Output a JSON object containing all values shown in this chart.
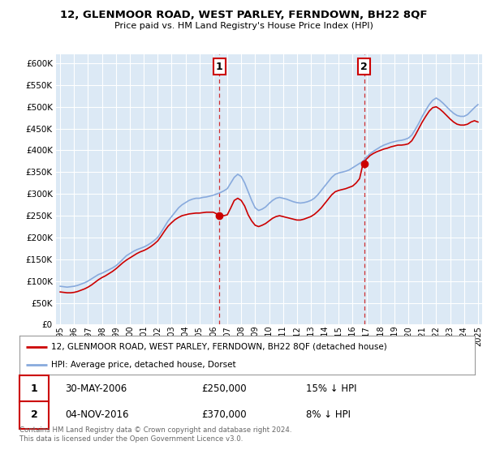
{
  "title": "12, GLENMOOR ROAD, WEST PARLEY, FERNDOWN, BH22 8QF",
  "subtitle": "Price paid vs. HM Land Registry's House Price Index (HPI)",
  "plot_bg": "#dce9f5",
  "red_color": "#cc0000",
  "blue_color": "#88aadd",
  "ylim": [
    0,
    620000
  ],
  "yticks": [
    0,
    50000,
    100000,
    150000,
    200000,
    250000,
    300000,
    350000,
    400000,
    450000,
    500000,
    550000,
    600000
  ],
  "sale1_year": 2006.42,
  "sale1_price": 250000,
  "sale1_label": "1",
  "sale2_year": 2016.84,
  "sale2_price": 370000,
  "sale2_label": "2",
  "legend_red": "12, GLENMOOR ROAD, WEST PARLEY, FERNDOWN, BH22 8QF (detached house)",
  "legend_blue": "HPI: Average price, detached house, Dorset",
  "ann1_date": "30-MAY-2006",
  "ann1_price": "£250,000",
  "ann1_hpi": "15% ↓ HPI",
  "ann2_date": "04-NOV-2016",
  "ann2_price": "£370,000",
  "ann2_hpi": "8% ↓ HPI",
  "footer": "Contains HM Land Registry data © Crown copyright and database right 2024.\nThis data is licensed under the Open Government Licence v3.0.",
  "hpi_x": [
    1995.0,
    1995.25,
    1995.5,
    1995.75,
    1996.0,
    1996.25,
    1996.5,
    1996.75,
    1997.0,
    1997.25,
    1997.5,
    1997.75,
    1998.0,
    1998.25,
    1998.5,
    1998.75,
    1999.0,
    1999.25,
    1999.5,
    1999.75,
    2000.0,
    2000.25,
    2000.5,
    2000.75,
    2001.0,
    2001.25,
    2001.5,
    2001.75,
    2002.0,
    2002.25,
    2002.5,
    2002.75,
    2003.0,
    2003.25,
    2003.5,
    2003.75,
    2004.0,
    2004.25,
    2004.5,
    2004.75,
    2005.0,
    2005.25,
    2005.5,
    2005.75,
    2006.0,
    2006.25,
    2006.5,
    2006.75,
    2007.0,
    2007.25,
    2007.5,
    2007.75,
    2008.0,
    2008.25,
    2008.5,
    2008.75,
    2009.0,
    2009.25,
    2009.5,
    2009.75,
    2010.0,
    2010.25,
    2010.5,
    2010.75,
    2011.0,
    2011.25,
    2011.5,
    2011.75,
    2012.0,
    2012.25,
    2012.5,
    2012.75,
    2013.0,
    2013.25,
    2013.5,
    2013.75,
    2014.0,
    2014.25,
    2014.5,
    2014.75,
    2015.0,
    2015.25,
    2015.5,
    2015.75,
    2016.0,
    2016.25,
    2016.5,
    2016.75,
    2017.0,
    2017.25,
    2017.5,
    2017.75,
    2018.0,
    2018.25,
    2018.5,
    2018.75,
    2019.0,
    2019.25,
    2019.5,
    2019.75,
    2020.0,
    2020.25,
    2020.5,
    2020.75,
    2021.0,
    2021.25,
    2021.5,
    2021.75,
    2022.0,
    2022.25,
    2022.5,
    2022.75,
    2023.0,
    2023.25,
    2023.5,
    2023.75,
    2024.0,
    2024.25,
    2024.5,
    2024.75,
    2025.0
  ],
  "hpi_y": [
    88000,
    87000,
    86000,
    87000,
    88000,
    90000,
    93000,
    96000,
    100000,
    105000,
    110000,
    115000,
    118000,
    122000,
    126000,
    130000,
    135000,
    142000,
    150000,
    158000,
    163000,
    168000,
    172000,
    175000,
    178000,
    182000,
    187000,
    193000,
    200000,
    212000,
    225000,
    238000,
    248000,
    258000,
    268000,
    275000,
    280000,
    285000,
    288000,
    290000,
    290000,
    292000,
    293000,
    295000,
    297000,
    300000,
    303000,
    307000,
    312000,
    325000,
    338000,
    345000,
    340000,
    325000,
    305000,
    285000,
    268000,
    262000,
    265000,
    270000,
    278000,
    285000,
    290000,
    292000,
    290000,
    288000,
    285000,
    282000,
    280000,
    279000,
    280000,
    282000,
    285000,
    290000,
    298000,
    308000,
    318000,
    328000,
    338000,
    345000,
    348000,
    350000,
    352000,
    355000,
    360000,
    365000,
    370000,
    375000,
    385000,
    392000,
    398000,
    403000,
    408000,
    412000,
    415000,
    418000,
    420000,
    422000,
    423000,
    425000,
    428000,
    435000,
    448000,
    462000,
    478000,
    492000,
    505000,
    515000,
    520000,
    515000,
    508000,
    500000,
    492000,
    485000,
    480000,
    478000,
    478000,
    482000,
    490000,
    498000,
    505000
  ],
  "red_x": [
    1995.0,
    1995.25,
    1995.5,
    1995.75,
    1996.0,
    1996.25,
    1996.5,
    1996.75,
    1997.0,
    1997.25,
    1997.5,
    1997.75,
    1998.0,
    1998.25,
    1998.5,
    1998.75,
    1999.0,
    1999.25,
    1999.5,
    1999.75,
    2000.0,
    2000.25,
    2000.5,
    2000.75,
    2001.0,
    2001.25,
    2001.5,
    2001.75,
    2002.0,
    2002.25,
    2002.5,
    2002.75,
    2003.0,
    2003.25,
    2003.5,
    2003.75,
    2004.0,
    2004.25,
    2004.5,
    2004.75,
    2005.0,
    2005.25,
    2005.5,
    2005.75,
    2006.0,
    2006.25,
    2006.5,
    2006.75,
    2007.0,
    2007.25,
    2007.5,
    2007.75,
    2008.0,
    2008.25,
    2008.5,
    2008.75,
    2009.0,
    2009.25,
    2009.5,
    2009.75,
    2010.0,
    2010.25,
    2010.5,
    2010.75,
    2011.0,
    2011.25,
    2011.5,
    2011.75,
    2012.0,
    2012.25,
    2012.5,
    2012.75,
    2013.0,
    2013.25,
    2013.5,
    2013.75,
    2014.0,
    2014.25,
    2014.5,
    2014.75,
    2015.0,
    2015.25,
    2015.5,
    2015.75,
    2016.0,
    2016.25,
    2016.5,
    2016.75,
    2017.0,
    2017.25,
    2017.5,
    2017.75,
    2018.0,
    2018.25,
    2018.5,
    2018.75,
    2019.0,
    2019.25,
    2019.5,
    2019.75,
    2020.0,
    2020.25,
    2020.5,
    2020.75,
    2021.0,
    2021.25,
    2021.5,
    2021.75,
    2022.0,
    2022.25,
    2022.5,
    2022.75,
    2023.0,
    2023.25,
    2023.5,
    2023.75,
    2024.0,
    2024.25,
    2024.5,
    2024.75,
    2025.0
  ],
  "red_y": [
    75000,
    74000,
    73000,
    73000,
    74000,
    76000,
    79000,
    82000,
    86000,
    91000,
    97000,
    103000,
    108000,
    112000,
    117000,
    122000,
    128000,
    135000,
    142000,
    148000,
    153000,
    158000,
    163000,
    167000,
    170000,
    174000,
    179000,
    185000,
    192000,
    203000,
    215000,
    226000,
    234000,
    241000,
    246000,
    250000,
    252000,
    254000,
    255000,
    256000,
    256000,
    257000,
    258000,
    258000,
    258000,
    254000,
    252000,
    250000,
    252000,
    268000,
    285000,
    290000,
    285000,
    272000,
    252000,
    238000,
    228000,
    225000,
    228000,
    232000,
    238000,
    244000,
    248000,
    250000,
    248000,
    246000,
    244000,
    242000,
    240000,
    240000,
    242000,
    245000,
    248000,
    253000,
    260000,
    268000,
    278000,
    288000,
    298000,
    305000,
    308000,
    310000,
    312000,
    315000,
    318000,
    325000,
    335000,
    370000,
    380000,
    388000,
    393000,
    397000,
    400000,
    403000,
    405000,
    408000,
    410000,
    412000,
    412000,
    413000,
    415000,
    422000,
    435000,
    450000,
    465000,
    478000,
    490000,
    498000,
    500000,
    495000,
    488000,
    480000,
    472000,
    465000,
    460000,
    458000,
    458000,
    460000,
    465000,
    468000,
    465000
  ]
}
